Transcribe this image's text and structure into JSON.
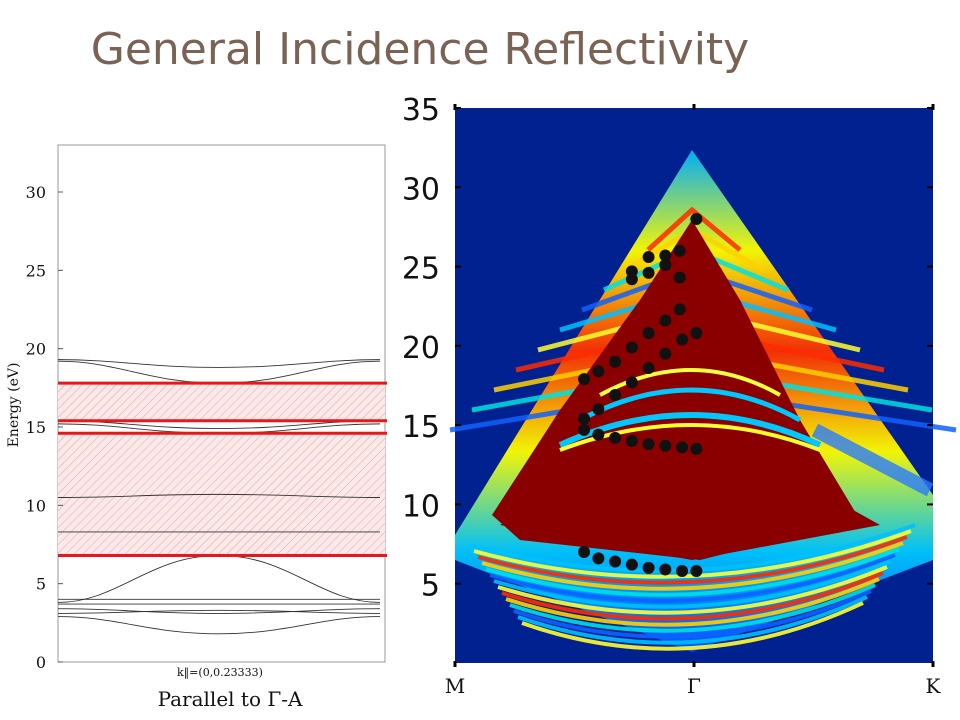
{
  "slide": {
    "title": "General Incidence Reflectivity"
  },
  "colors": {
    "heatmap_background": "#00218f",
    "band_highlight": "#e8171a",
    "marker": "#111111"
  },
  "chart_data": [
    {
      "type": "line",
      "ylabel": "Energy (eV)",
      "k_label": "k‖=(0,0.23333)",
      "caption": "Parallel to Γ-A",
      "ylim": [
        0,
        33
      ],
      "yticks": [
        "0",
        "5",
        "10",
        "15",
        "20",
        "25",
        "30"
      ],
      "ytick_values": [
        0,
        5,
        10,
        15,
        20,
        25,
        30
      ],
      "highlight_lines": [
        6.8,
        14.6,
        15.4,
        17.8
      ],
      "shaded_regions": [
        [
          6.8,
          14.6
        ],
        [
          15.4,
          17.8
        ]
      ],
      "bands": [
        {
          "start": 19.3,
          "mid": 18.8,
          "end": 19.3
        },
        {
          "start": 19.2,
          "mid": 17.8,
          "end": 19.2
        },
        {
          "start": 15.4,
          "mid": 14.9,
          "end": 15.4
        },
        {
          "start": 15.2,
          "mid": 14.6,
          "end": 15.2
        },
        {
          "start": 10.5,
          "mid": 10.7,
          "end": 10.5
        },
        {
          "start": 8.3,
          "mid": 8.3,
          "end": 8.3
        },
        {
          "start": 3.8,
          "mid": 6.8,
          "end": 3.8
        },
        {
          "start": 4.0,
          "mid": 4.0,
          "end": 4.0
        },
        {
          "start": 3.7,
          "mid": 3.7,
          "end": 3.7
        },
        {
          "start": 3.4,
          "mid": 3.1,
          "end": 3.4
        },
        {
          "start": 3.1,
          "mid": 3.3,
          "end": 3.1
        },
        {
          "start": 2.9,
          "mid": 1.8,
          "end": 2.9
        }
      ]
    },
    {
      "type": "heatmap",
      "xlabels": [
        "M",
        "Γ",
        "K"
      ],
      "yticks": [
        "5",
        "10",
        "15",
        "20",
        "25",
        "30",
        "35"
      ],
      "ytick_values": [
        5,
        10,
        15,
        20,
        25,
        30,
        35
      ],
      "ylim": [
        0,
        35
      ],
      "xlim": [
        -1,
        1
      ],
      "markers": [
        {
          "x": -0.46,
          "y": 7.0
        },
        {
          "x": -0.4,
          "y": 6.6
        },
        {
          "x": -0.33,
          "y": 6.4
        },
        {
          "x": -0.26,
          "y": 6.2
        },
        {
          "x": -0.19,
          "y": 6.0
        },
        {
          "x": -0.12,
          "y": 5.9
        },
        {
          "x": -0.05,
          "y": 5.8
        },
        {
          "x": 0.01,
          "y": 5.8
        },
        {
          "x": -0.46,
          "y": 14.7
        },
        {
          "x": -0.4,
          "y": 14.4
        },
        {
          "x": -0.33,
          "y": 14.2
        },
        {
          "x": -0.26,
          "y": 14.0
        },
        {
          "x": -0.19,
          "y": 13.8
        },
        {
          "x": -0.12,
          "y": 13.7
        },
        {
          "x": -0.05,
          "y": 13.6
        },
        {
          "x": 0.01,
          "y": 13.5
        },
        {
          "x": -0.46,
          "y": 15.4
        },
        {
          "x": -0.4,
          "y": 16.0
        },
        {
          "x": -0.33,
          "y": 16.9
        },
        {
          "x": -0.26,
          "y": 17.7
        },
        {
          "x": -0.19,
          "y": 18.6
        },
        {
          "x": -0.12,
          "y": 19.5
        },
        {
          "x": -0.05,
          "y": 20.4
        },
        {
          "x": 0.01,
          "y": 20.8
        },
        {
          "x": -0.46,
          "y": 17.9
        },
        {
          "x": -0.4,
          "y": 18.4
        },
        {
          "x": -0.33,
          "y": 19.0
        },
        {
          "x": -0.26,
          "y": 19.9
        },
        {
          "x": -0.19,
          "y": 20.8
        },
        {
          "x": -0.12,
          "y": 21.6
        },
        {
          "x": -0.06,
          "y": 22.3
        },
        {
          "x": -0.26,
          "y": 24.2
        },
        {
          "x": -0.19,
          "y": 24.6
        },
        {
          "x": -0.12,
          "y": 25.1
        },
        {
          "x": -0.06,
          "y": 24.3
        },
        {
          "x": -0.26,
          "y": 24.7
        },
        {
          "x": -0.19,
          "y": 25.6
        },
        {
          "x": -0.12,
          "y": 25.7
        },
        {
          "x": -0.06,
          "y": 26.0
        },
        {
          "x": 0.01,
          "y": 28.0
        }
      ]
    }
  ]
}
